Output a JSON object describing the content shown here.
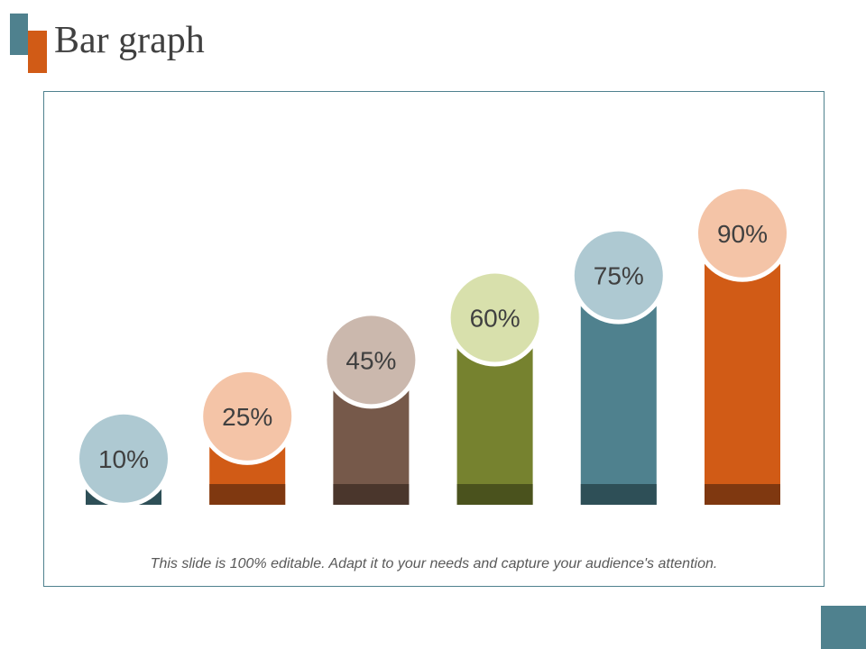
{
  "slide": {
    "title": "Bar graph",
    "caption": "This slide is 100% editable. Adapt it to your needs and capture your audience's attention."
  },
  "colors": {
    "teal": "#4f818e",
    "orange": "#d15b16",
    "frame_border": "#4f818e"
  },
  "chart_data": {
    "type": "bar",
    "title": "",
    "xlabel": "",
    "ylabel": "",
    "ylim": [
      0,
      100
    ],
    "grid": false,
    "legend": "none",
    "bars": [
      {
        "value": 10,
        "label": "10%",
        "bar_color": "#4f818e",
        "base_color": "#2e4f57",
        "bubble_color": "#aec9d2"
      },
      {
        "value": 25,
        "label": "25%",
        "bar_color": "#d15b16",
        "base_color": "#7f3810",
        "bubble_color": "#f4c4a7"
      },
      {
        "value": 45,
        "label": "45%",
        "bar_color": "#76594a",
        "base_color": "#4a362c",
        "bubble_color": "#cbb8ad"
      },
      {
        "value": 60,
        "label": "60%",
        "bar_color": "#76822f",
        "base_color": "#4a521d",
        "bubble_color": "#d8e0ac"
      },
      {
        "value": 75,
        "label": "75%",
        "bar_color": "#4f818e",
        "base_color": "#2e4f57",
        "bubble_color": "#aec9d2"
      },
      {
        "value": 90,
        "label": "90%",
        "bar_color": "#d15b16",
        "base_color": "#7f3810",
        "bubble_color": "#f4c4a7"
      }
    ]
  }
}
